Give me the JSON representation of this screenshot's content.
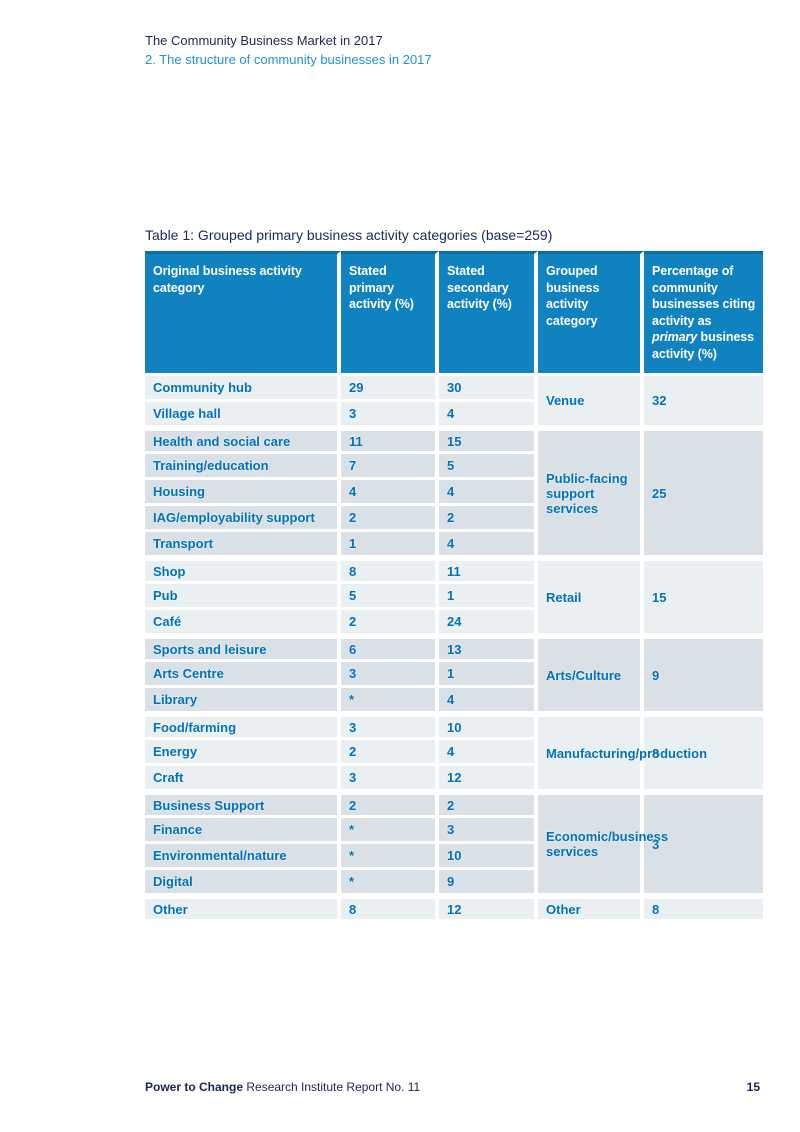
{
  "page": {
    "header": {
      "line1": "The Community Business Market in 2017",
      "line2": "2. The structure of community businesses in 2017"
    },
    "footer": {
      "brand": "Power to Change",
      "rest": " Research Institute Report No. 11",
      "page_number": "15"
    },
    "colors": {
      "header_blue": "#1182c0",
      "header_blue_top_edge": "#0a6da6",
      "cell_text_blue": "#0071bb",
      "navy": "#20295a",
      "subtitle_blue": "#2093d0",
      "row_light": "#eaeff2",
      "row_dark": "#d9e0e6"
    }
  },
  "table": {
    "title": "Table 1: Grouped primary business activity categories (base=259)",
    "header": {
      "col1": "Original business activity category",
      "col2": "Stated primary activity (%)",
      "col3": "Stated secondary activity (%)",
      "col4": "Grouped business activity category",
      "col5_pre": "Percentage of community businesses citing activity as ",
      "col5_italic": "primary",
      "col5_post": " business activity (%)"
    },
    "groups": [
      {
        "name": "Venue",
        "pct": "32",
        "rows": [
          [
            "Community hub",
            "29",
            "30"
          ],
          [
            "Village hall",
            "3",
            "4"
          ]
        ]
      },
      {
        "name": "Public-facing support services",
        "pct": "25",
        "rows": [
          [
            "Health and social care",
            "11",
            "15"
          ],
          [
            "Training/education",
            "7",
            "5"
          ],
          [
            "Housing",
            "4",
            "4"
          ],
          [
            "IAG/employability support",
            "2",
            "2"
          ],
          [
            "Transport",
            "1",
            "4"
          ]
        ]
      },
      {
        "name": "Retail",
        "pct": "15",
        "rows": [
          [
            "Shop",
            "8",
            "11"
          ],
          [
            "Pub",
            "5",
            "1"
          ],
          [
            "Café",
            "2",
            "24"
          ]
        ]
      },
      {
        "name": "Arts/Culture",
        "pct": "9",
        "rows": [
          [
            "Sports and leisure",
            "6",
            "13"
          ],
          [
            "Arts Centre",
            "3",
            "1"
          ],
          [
            "Library",
            "*",
            "4"
          ]
        ]
      },
      {
        "name": "Manufacturing/production",
        "pct": "8",
        "rows": [
          [
            "Food/farming",
            "3",
            "10"
          ],
          [
            "Energy",
            "2",
            "4"
          ],
          [
            "Craft",
            "3",
            "12"
          ]
        ]
      },
      {
        "name": "Economic/business services",
        "pct": "3",
        "rows": [
          [
            "Business Support",
            "2",
            "2"
          ],
          [
            "Finance",
            "*",
            "3"
          ],
          [
            "Environmental/nature",
            "*",
            "10"
          ],
          [
            "Digital",
            "*",
            "9"
          ]
        ]
      },
      {
        "name": "Other",
        "pct": "8",
        "rows": [
          [
            "Other",
            "8",
            "12"
          ]
        ]
      }
    ]
  }
}
